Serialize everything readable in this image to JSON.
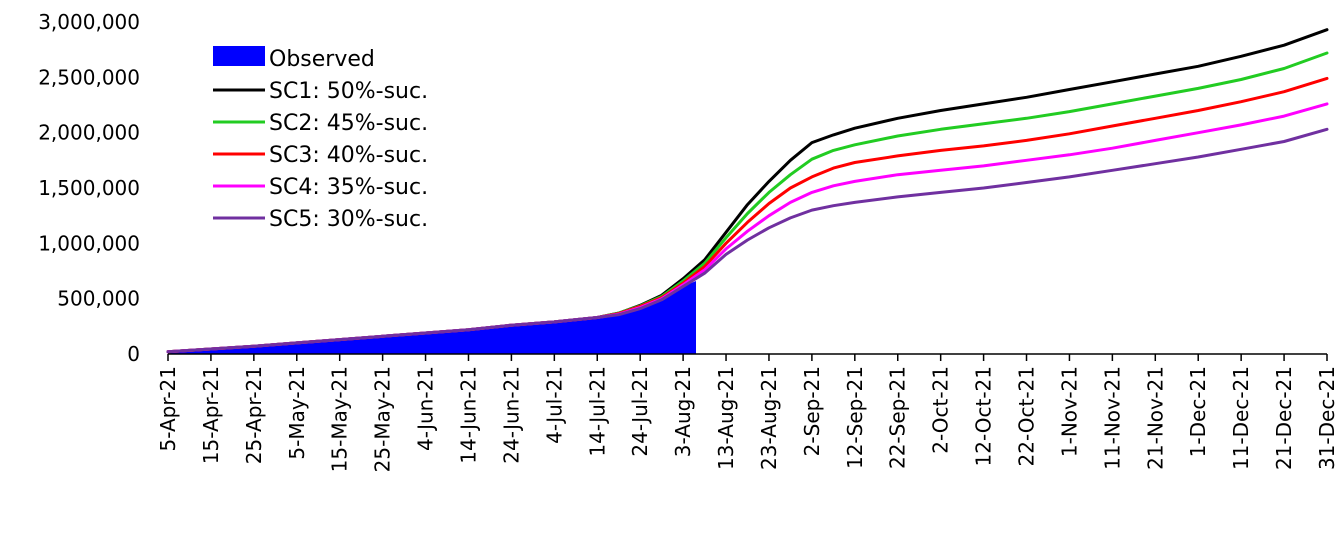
{
  "chart_data": {
    "type": "line",
    "title": "",
    "xlabel": "",
    "ylabel": "",
    "ylim": [
      0,
      3000000
    ],
    "yticks": [
      "0",
      "500,000",
      "1,000,000",
      "1,500,000",
      "2,000,000",
      "2,500,000",
      "3,000,000"
    ],
    "ytick_values": [
      0,
      500000,
      1000000,
      1500000,
      2000000,
      2500000,
      3000000
    ],
    "xlim": [
      "2021-04-05",
      "2021-12-31"
    ],
    "xticks": [
      "5-Apr-21",
      "15-Apr-21",
      "25-Apr-21",
      "5-May-21",
      "15-May-21",
      "25-May-21",
      "4-Jun-21",
      "14-Jun-21",
      "24-Jun-21",
      "4-Jul-21",
      "14-Jul-21",
      "24-Jul-21",
      "3-Aug-21",
      "13-Aug-21",
      "23-Aug-21",
      "2-Sep-21",
      "12-Sep-21",
      "22-Sep-21",
      "2-Oct-21",
      "12-Oct-21",
      "22-Oct-21",
      "1-Nov-21",
      "11-Nov-21",
      "21-Nov-21",
      "1-Dec-21",
      "11-Dec-21",
      "21-Dec-21",
      "31-Dec-21"
    ],
    "xtick_dates": [
      "2021-04-05",
      "2021-04-15",
      "2021-04-25",
      "2021-05-05",
      "2021-05-15",
      "2021-05-25",
      "2021-06-04",
      "2021-06-14",
      "2021-06-24",
      "2021-07-04",
      "2021-07-14",
      "2021-07-24",
      "2021-08-03",
      "2021-08-13",
      "2021-08-23",
      "2021-09-02",
      "2021-09-12",
      "2021-09-22",
      "2021-10-02",
      "2021-10-12",
      "2021-10-22",
      "2021-11-01",
      "2021-11-11",
      "2021-11-21",
      "2021-12-01",
      "2021-12-11",
      "2021-12-21",
      "2021-12-31"
    ],
    "grid": false,
    "legend_position": "top-left",
    "observed": {
      "name": "Observed",
      "color": "#0000ff",
      "x": [
        "2021-04-05",
        "2021-04-15",
        "2021-04-25",
        "2021-05-05",
        "2021-05-15",
        "2021-05-25",
        "2021-06-04",
        "2021-06-14",
        "2021-06-24",
        "2021-07-04",
        "2021-07-14",
        "2021-07-19",
        "2021-07-24",
        "2021-07-29",
        "2021-08-03",
        "2021-08-06"
      ],
      "values": [
        20000,
        45000,
        70000,
        100000,
        130000,
        160000,
        190000,
        220000,
        260000,
        290000,
        330000,
        370000,
        440000,
        520000,
        610000,
        660000
      ]
    },
    "series": [
      {
        "name": "SC1: 50%-suc.",
        "color": "#000000",
        "x": [
          "2021-04-05",
          "2021-04-15",
          "2021-04-25",
          "2021-05-05",
          "2021-05-15",
          "2021-05-25",
          "2021-06-04",
          "2021-06-14",
          "2021-06-24",
          "2021-07-04",
          "2021-07-14",
          "2021-07-19",
          "2021-07-24",
          "2021-07-29",
          "2021-08-03",
          "2021-08-08",
          "2021-08-13",
          "2021-08-18",
          "2021-08-23",
          "2021-08-28",
          "2021-09-02",
          "2021-09-07",
          "2021-09-12",
          "2021-09-22",
          "2021-10-02",
          "2021-10-12",
          "2021-10-22",
          "2021-11-01",
          "2021-11-11",
          "2021-11-21",
          "2021-12-01",
          "2021-12-11",
          "2021-12-21",
          "2021-12-31"
        ],
        "values": [
          20000,
          45000,
          70000,
          100000,
          130000,
          160000,
          190000,
          220000,
          260000,
          290000,
          330000,
          370000,
          440000,
          530000,
          680000,
          850000,
          1100000,
          1350000,
          1560000,
          1750000,
          1910000,
          1980000,
          2040000,
          2130000,
          2200000,
          2260000,
          2320000,
          2390000,
          2460000,
          2530000,
          2600000,
          2690000,
          2790000,
          2930000
        ]
      },
      {
        "name": "SC2: 45%-suc.",
        "color": "#22cc22",
        "x": [
          "2021-04-05",
          "2021-04-15",
          "2021-04-25",
          "2021-05-05",
          "2021-05-15",
          "2021-05-25",
          "2021-06-04",
          "2021-06-14",
          "2021-06-24",
          "2021-07-04",
          "2021-07-14",
          "2021-07-19",
          "2021-07-24",
          "2021-07-29",
          "2021-08-03",
          "2021-08-08",
          "2021-08-13",
          "2021-08-18",
          "2021-08-23",
          "2021-08-28",
          "2021-09-02",
          "2021-09-07",
          "2021-09-12",
          "2021-09-22",
          "2021-10-02",
          "2021-10-12",
          "2021-10-22",
          "2021-11-01",
          "2021-11-11",
          "2021-11-21",
          "2021-12-01",
          "2021-12-11",
          "2021-12-21",
          "2021-12-31"
        ],
        "values": [
          20000,
          45000,
          70000,
          100000,
          130000,
          160000,
          190000,
          220000,
          260000,
          290000,
          330000,
          370000,
          435000,
          520000,
          660000,
          820000,
          1050000,
          1270000,
          1460000,
          1620000,
          1760000,
          1840000,
          1890000,
          1970000,
          2030000,
          2080000,
          2130000,
          2190000,
          2260000,
          2330000,
          2400000,
          2480000,
          2580000,
          2720000
        ]
      },
      {
        "name": "SC3: 40%-suc.",
        "color": "#ff0000",
        "x": [
          "2021-04-05",
          "2021-04-15",
          "2021-04-25",
          "2021-05-05",
          "2021-05-15",
          "2021-05-25",
          "2021-06-04",
          "2021-06-14",
          "2021-06-24",
          "2021-07-04",
          "2021-07-14",
          "2021-07-19",
          "2021-07-24",
          "2021-07-29",
          "2021-08-03",
          "2021-08-08",
          "2021-08-13",
          "2021-08-18",
          "2021-08-23",
          "2021-08-28",
          "2021-09-02",
          "2021-09-07",
          "2021-09-12",
          "2021-09-22",
          "2021-10-02",
          "2021-10-12",
          "2021-10-22",
          "2021-11-01",
          "2021-11-11",
          "2021-11-21",
          "2021-12-01",
          "2021-12-11",
          "2021-12-21",
          "2021-12-31"
        ],
        "values": [
          20000,
          45000,
          70000,
          100000,
          130000,
          160000,
          190000,
          220000,
          260000,
          290000,
          330000,
          365000,
          430000,
          510000,
          640000,
          790000,
          1000000,
          1190000,
          1360000,
          1500000,
          1600000,
          1680000,
          1730000,
          1790000,
          1840000,
          1880000,
          1930000,
          1990000,
          2060000,
          2130000,
          2200000,
          2280000,
          2370000,
          2490000
        ]
      },
      {
        "name": "SC4: 35%-suc.",
        "color": "#ff00ff",
        "x": [
          "2021-04-05",
          "2021-04-15",
          "2021-04-25",
          "2021-05-05",
          "2021-05-15",
          "2021-05-25",
          "2021-06-04",
          "2021-06-14",
          "2021-06-24",
          "2021-07-04",
          "2021-07-14",
          "2021-07-19",
          "2021-07-24",
          "2021-07-29",
          "2021-08-03",
          "2021-08-08",
          "2021-08-13",
          "2021-08-18",
          "2021-08-23",
          "2021-08-28",
          "2021-09-02",
          "2021-09-07",
          "2021-09-12",
          "2021-09-22",
          "2021-10-02",
          "2021-10-12",
          "2021-10-22",
          "2021-11-01",
          "2021-11-11",
          "2021-11-21",
          "2021-12-01",
          "2021-12-11",
          "2021-12-21",
          "2021-12-31"
        ],
        "values": [
          20000,
          45000,
          70000,
          100000,
          130000,
          160000,
          190000,
          220000,
          260000,
          290000,
          330000,
          360000,
          420000,
          500000,
          625000,
          760000,
          950000,
          1110000,
          1250000,
          1370000,
          1460000,
          1520000,
          1560000,
          1620000,
          1660000,
          1700000,
          1750000,
          1800000,
          1860000,
          1930000,
          2000000,
          2070000,
          2150000,
          2260000
        ]
      },
      {
        "name": "SC5: 30%-suc.",
        "color": "#7030a0",
        "x": [
          "2021-04-05",
          "2021-04-15",
          "2021-04-25",
          "2021-05-05",
          "2021-05-15",
          "2021-05-25",
          "2021-06-04",
          "2021-06-14",
          "2021-06-24",
          "2021-07-04",
          "2021-07-14",
          "2021-07-19",
          "2021-07-24",
          "2021-07-29",
          "2021-08-03",
          "2021-08-08",
          "2021-08-13",
          "2021-08-18",
          "2021-08-23",
          "2021-08-28",
          "2021-09-02",
          "2021-09-07",
          "2021-09-12",
          "2021-09-22",
          "2021-10-02",
          "2021-10-12",
          "2021-10-22",
          "2021-11-01",
          "2021-11-11",
          "2021-11-21",
          "2021-12-01",
          "2021-12-11",
          "2021-12-21",
          "2021-12-31"
        ],
        "values": [
          20000,
          45000,
          70000,
          100000,
          130000,
          160000,
          190000,
          220000,
          260000,
          290000,
          330000,
          355000,
          410000,
          490000,
          610000,
          730000,
          900000,
          1030000,
          1140000,
          1230000,
          1300000,
          1340000,
          1370000,
          1420000,
          1460000,
          1500000,
          1550000,
          1600000,
          1660000,
          1720000,
          1780000,
          1850000,
          1920000,
          2030000
        ]
      }
    ]
  }
}
